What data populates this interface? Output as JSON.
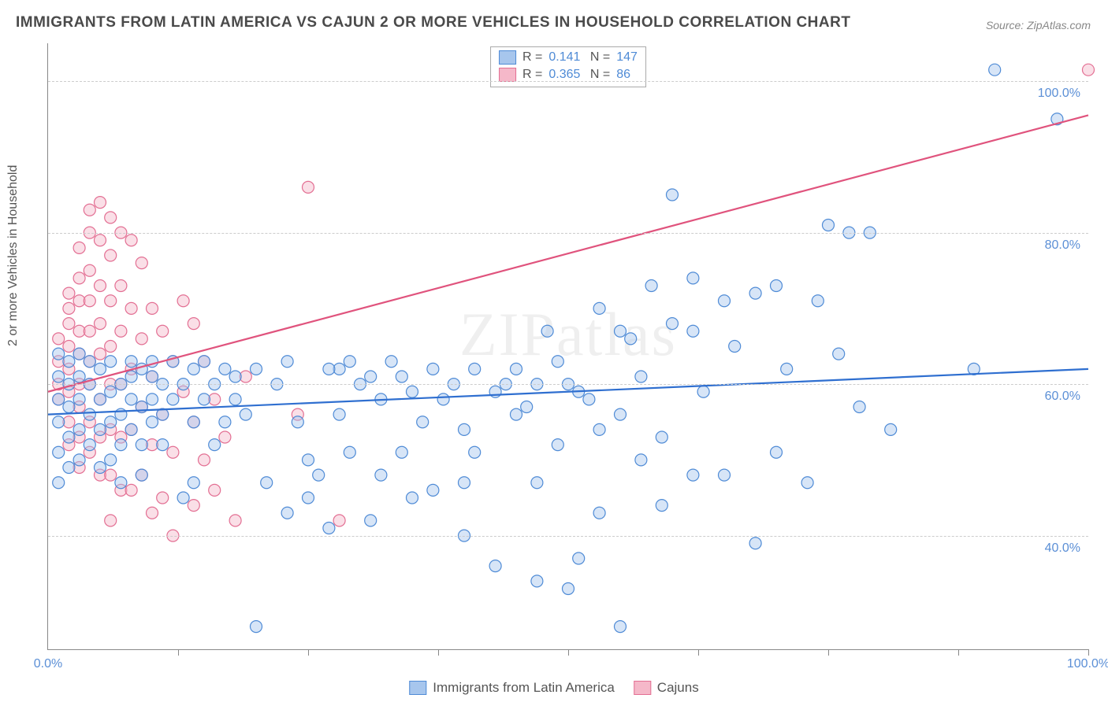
{
  "title": "IMMIGRANTS FROM LATIN AMERICA VS CAJUN 2 OR MORE VEHICLES IN HOUSEHOLD CORRELATION CHART",
  "source_label": "Source: ZipAtlas.com",
  "watermark": "ZIPatlas",
  "ylabel": "2 or more Vehicles in Household",
  "chart": {
    "type": "scatter",
    "xlim": [
      0,
      100
    ],
    "ylim": [
      25,
      105
    ],
    "yticks": [
      40,
      60,
      80,
      100
    ],
    "ytick_labels": [
      "40.0%",
      "60.0%",
      "80.0%",
      "100.0%"
    ],
    "xtick_label_min": "0.0%",
    "xtick_label_max": "100.0%",
    "xticks_minor": [
      12.5,
      25,
      37.5,
      50,
      62.5,
      75,
      87.5,
      100
    ],
    "background_color": "#ffffff",
    "grid_color": "#cccccc",
    "marker_radius": 7.5,
    "marker_opacity": 0.45,
    "series": [
      {
        "name": "Immigrants from Latin America",
        "color_fill": "#a7c6ed",
        "color_stroke": "#4f8bd6",
        "R": "0.141",
        "N": "147",
        "trend": {
          "x1": 0,
          "y1": 56.0,
          "x2": 100,
          "y2": 62.0,
          "color": "#2f6fd0"
        },
        "points": [
          [
            91,
            101.5
          ],
          [
            97,
            95
          ],
          [
            89,
            62
          ],
          [
            75,
            81
          ],
          [
            77,
            80
          ],
          [
            79,
            80
          ],
          [
            60,
            85
          ],
          [
            58,
            73
          ],
          [
            62,
            74
          ],
          [
            55,
            67
          ],
          [
            56,
            66
          ],
          [
            60,
            68
          ],
          [
            62,
            67
          ],
          [
            65,
            71
          ],
          [
            68,
            72
          ],
          [
            70,
            73
          ],
          [
            74,
            71
          ],
          [
            50,
            60
          ],
          [
            52,
            58
          ],
          [
            53,
            70
          ],
          [
            48,
            67
          ],
          [
            46,
            57
          ],
          [
            45,
            56
          ],
          [
            44,
            60
          ],
          [
            47,
            47
          ],
          [
            40,
            54
          ],
          [
            41,
            51
          ],
          [
            40,
            47
          ],
          [
            38,
            58
          ],
          [
            36,
            55
          ],
          [
            34,
            61
          ],
          [
            32,
            58
          ],
          [
            31,
            42
          ],
          [
            30,
            60
          ],
          [
            29,
            51
          ],
          [
            28,
            56
          ],
          [
            28,
            62
          ],
          [
            27,
            62
          ],
          [
            26,
            48
          ],
          [
            25,
            50
          ],
          [
            24,
            55
          ],
          [
            23,
            63
          ],
          [
            22,
            60
          ],
          [
            21,
            47
          ],
          [
            20,
            28
          ],
          [
            20,
            62
          ],
          [
            19,
            56
          ],
          [
            18,
            61
          ],
          [
            18,
            58
          ],
          [
            17,
            55
          ],
          [
            17,
            62
          ],
          [
            16,
            60
          ],
          [
            16,
            52
          ],
          [
            15,
            58
          ],
          [
            15,
            63
          ],
          [
            14,
            55
          ],
          [
            14,
            62
          ],
          [
            14,
            47
          ],
          [
            13,
            60
          ],
          [
            13,
            45
          ],
          [
            12,
            58
          ],
          [
            12,
            63
          ],
          [
            11,
            60
          ],
          [
            11,
            56
          ],
          [
            11,
            52
          ],
          [
            10,
            61
          ],
          [
            10,
            58
          ],
          [
            10,
            55
          ],
          [
            10,
            63
          ],
          [
            9,
            62
          ],
          [
            9,
            57
          ],
          [
            9,
            52
          ],
          [
            9,
            48
          ],
          [
            8,
            61
          ],
          [
            8,
            58
          ],
          [
            8,
            54
          ],
          [
            8,
            63
          ],
          [
            7,
            60
          ],
          [
            7,
            56
          ],
          [
            7,
            52
          ],
          [
            7,
            47
          ],
          [
            6,
            63
          ],
          [
            6,
            59
          ],
          [
            6,
            55
          ],
          [
            6,
            50
          ],
          [
            5,
            62
          ],
          [
            5,
            58
          ],
          [
            5,
            54
          ],
          [
            5,
            49
          ],
          [
            4,
            63
          ],
          [
            4,
            60
          ],
          [
            4,
            56
          ],
          [
            4,
            52
          ],
          [
            3,
            64
          ],
          [
            3,
            61
          ],
          [
            3,
            58
          ],
          [
            3,
            54
          ],
          [
            3,
            50
          ],
          [
            2,
            63
          ],
          [
            2,
            60
          ],
          [
            2,
            57
          ],
          [
            2,
            53
          ],
          [
            2,
            49
          ],
          [
            1,
            64
          ],
          [
            1,
            61
          ],
          [
            1,
            58
          ],
          [
            1,
            55
          ],
          [
            1,
            51
          ],
          [
            1,
            47
          ],
          [
            40,
            40
          ],
          [
            43,
            36
          ],
          [
            47,
            34
          ],
          [
            50,
            33
          ],
          [
            51,
            37
          ],
          [
            53,
            43
          ],
          [
            55,
            28
          ],
          [
            32,
            48
          ],
          [
            35,
            45
          ],
          [
            34,
            51
          ],
          [
            37,
            46
          ],
          [
            23,
            43
          ],
          [
            25,
            45
          ],
          [
            27,
            41
          ],
          [
            65,
            48
          ],
          [
            68,
            39
          ],
          [
            70,
            51
          ],
          [
            73,
            47
          ],
          [
            62,
            48
          ],
          [
            57,
            50
          ],
          [
            59,
            44
          ],
          [
            37,
            62
          ],
          [
            39,
            60
          ],
          [
            41,
            62
          ],
          [
            43,
            59
          ],
          [
            45,
            62
          ],
          [
            47,
            60
          ],
          [
            49,
            63
          ],
          [
            51,
            59
          ],
          [
            29,
            63
          ],
          [
            31,
            61
          ],
          [
            33,
            63
          ],
          [
            35,
            59
          ],
          [
            55,
            56
          ],
          [
            57,
            61
          ],
          [
            53,
            54
          ],
          [
            66,
            65
          ],
          [
            63,
            59
          ],
          [
            71,
            62
          ],
          [
            76,
            64
          ],
          [
            59,
            53
          ],
          [
            49,
            52
          ],
          [
            78,
            57
          ],
          [
            81,
            54
          ]
        ]
      },
      {
        "name": "Cajuns",
        "color_fill": "#f5b8c9",
        "color_stroke": "#e36f93",
        "R": "0.365",
        "N": "86",
        "trend": {
          "x1": 0,
          "y1": 59.0,
          "x2": 100,
          "y2": 95.5,
          "color": "#e0537d"
        },
        "points": [
          [
            100,
            101.5
          ],
          [
            25,
            86
          ],
          [
            24,
            56
          ],
          [
            1,
            66
          ],
          [
            1,
            63
          ],
          [
            1,
            60
          ],
          [
            1,
            58
          ],
          [
            2,
            72
          ],
          [
            2,
            70
          ],
          [
            2,
            68
          ],
          [
            2,
            65
          ],
          [
            2,
            62
          ],
          [
            2,
            59
          ],
          [
            2,
            55
          ],
          [
            2,
            52
          ],
          [
            3,
            78
          ],
          [
            3,
            74
          ],
          [
            3,
            71
          ],
          [
            3,
            67
          ],
          [
            3,
            64
          ],
          [
            3,
            60
          ],
          [
            3,
            57
          ],
          [
            3,
            53
          ],
          [
            3,
            49
          ],
          [
            4,
            83
          ],
          [
            4,
            80
          ],
          [
            4,
            75
          ],
          [
            4,
            71
          ],
          [
            4,
            67
          ],
          [
            4,
            63
          ],
          [
            4,
            60
          ],
          [
            4,
            55
          ],
          [
            4,
            51
          ],
          [
            5,
            84
          ],
          [
            5,
            79
          ],
          [
            5,
            73
          ],
          [
            5,
            68
          ],
          [
            5,
            64
          ],
          [
            5,
            58
          ],
          [
            5,
            53
          ],
          [
            5,
            48
          ],
          [
            6,
            82
          ],
          [
            6,
            77
          ],
          [
            6,
            71
          ],
          [
            6,
            65
          ],
          [
            6,
            60
          ],
          [
            6,
            54
          ],
          [
            6,
            48
          ],
          [
            6,
            42
          ],
          [
            7,
            80
          ],
          [
            7,
            73
          ],
          [
            7,
            67
          ],
          [
            7,
            60
          ],
          [
            7,
            53
          ],
          [
            7,
            46
          ],
          [
            8,
            79
          ],
          [
            8,
            70
          ],
          [
            8,
            62
          ],
          [
            8,
            54
          ],
          [
            8,
            46
          ],
          [
            9,
            76
          ],
          [
            9,
            66
          ],
          [
            9,
            57
          ],
          [
            9,
            48
          ],
          [
            10,
            70
          ],
          [
            10,
            61
          ],
          [
            10,
            52
          ],
          [
            10,
            43
          ],
          [
            11,
            67
          ],
          [
            11,
            56
          ],
          [
            11,
            45
          ],
          [
            12,
            63
          ],
          [
            12,
            51
          ],
          [
            12,
            40
          ],
          [
            13,
            59
          ],
          [
            14,
            55
          ],
          [
            14,
            44
          ],
          [
            15,
            50
          ],
          [
            16,
            46
          ],
          [
            18,
            42
          ],
          [
            13,
            71
          ],
          [
            14,
            68
          ],
          [
            15,
            63
          ],
          [
            16,
            58
          ],
          [
            17,
            53
          ],
          [
            19,
            61
          ],
          [
            28,
            42
          ]
        ]
      }
    ]
  },
  "legend_bottom": [
    {
      "label": "Immigrants from Latin America",
      "fill": "#a7c6ed",
      "stroke": "#4f8bd6"
    },
    {
      "label": "Cajuns",
      "fill": "#f5b8c9",
      "stroke": "#e36f93"
    }
  ]
}
